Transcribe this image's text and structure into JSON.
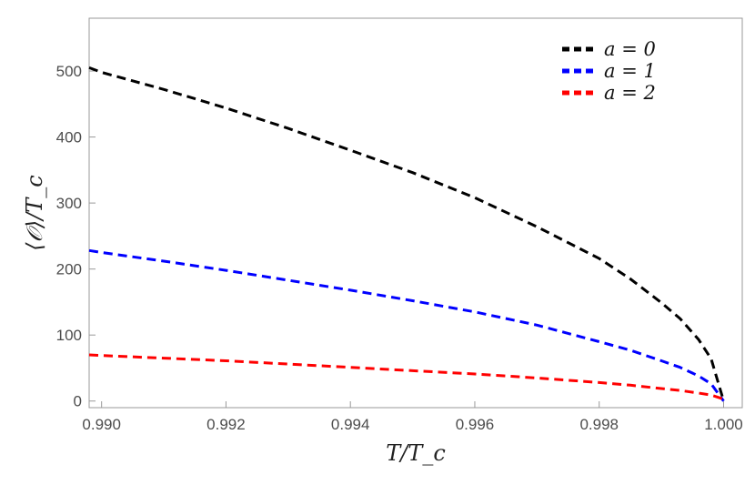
{
  "chart_data": {
    "type": "line",
    "xlabel": "T/T_c",
    "ylabel": "⟨𝒪⟩/T_c",
    "xlim": [
      0.9898,
      1.0003
    ],
    "ylim": [
      -10,
      580
    ],
    "x_ticks": [
      0.99,
      0.992,
      0.994,
      0.996,
      0.998,
      1.0
    ],
    "x_tick_labels": [
      "0.990",
      "0.992",
      "0.994",
      "0.996",
      "0.998",
      "1.000"
    ],
    "y_ticks": [
      0,
      100,
      200,
      300,
      400,
      500
    ],
    "y_tick_labels": [
      "0",
      "100",
      "200",
      "300",
      "400",
      "500"
    ],
    "grid": false,
    "legend_position": "top-right",
    "line_style": "dashed",
    "x": [
      0.9898,
      0.99,
      0.991,
      0.992,
      0.993,
      0.994,
      0.995,
      0.996,
      0.997,
      0.998,
      0.9985,
      0.999,
      0.9993,
      0.9996,
      0.9998,
      1.0
    ],
    "series": [
      {
        "name": "a = 0",
        "color": "#000000",
        "values": [
          505,
          498,
          472,
          444,
          413,
          380,
          346,
          308,
          264,
          216,
          185,
          149,
          125,
          93,
          64,
          0
        ]
      },
      {
        "name": "a = 1",
        "color": "#0000ff",
        "values": [
          228,
          225,
          212,
          198,
          183,
          168,
          152,
          135,
          115,
          90,
          77,
          61,
          51,
          38,
          26,
          0
        ]
      },
      {
        "name": "a = 2",
        "color": "#ff0000",
        "values": [
          70,
          69,
          65,
          61,
          56,
          51,
          46,
          41,
          35,
          28,
          24,
          19,
          16,
          12,
          9,
          3
        ]
      }
    ]
  }
}
